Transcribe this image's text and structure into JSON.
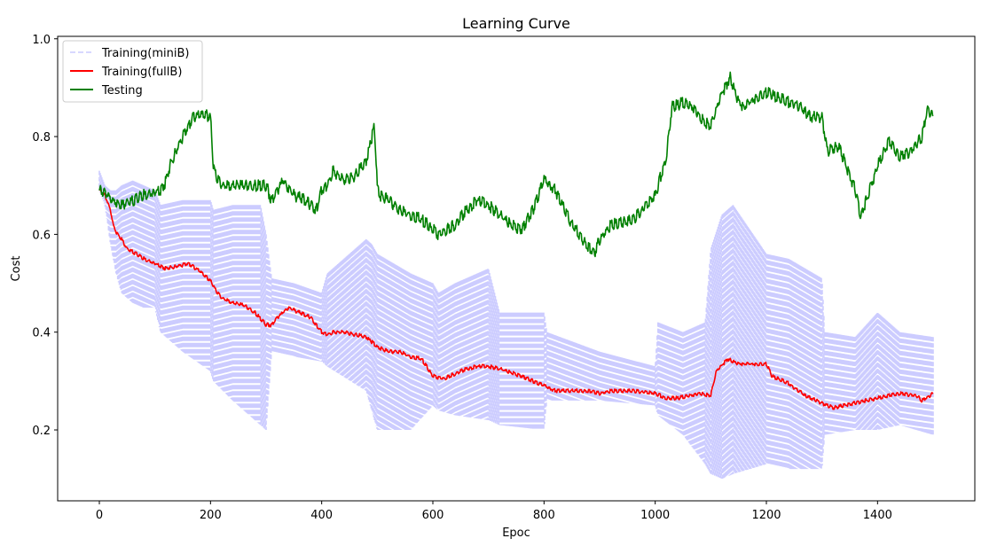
{
  "chart_data": {
    "type": "line",
    "title": "Learning Curve",
    "xlabel": "Epoc",
    "ylabel": "Cost",
    "xlim": [
      -75,
      1575
    ],
    "ylim": [
      0.055,
      1.005
    ],
    "xticks": [
      0,
      200,
      400,
      600,
      800,
      1000,
      1200,
      1400
    ],
    "yticks": [
      0.2,
      0.4,
      0.6,
      0.8,
      1.0
    ],
    "ytick_labels": [
      "0.2",
      "0.4",
      "0.6",
      "0.8",
      "1.0"
    ],
    "grid": false,
    "legend_position": "top-left",
    "series": [
      {
        "name": "Training(miniB)",
        "color": "#ccccff",
        "style": "dashed",
        "kind": "band",
        "x": [
          0,
          10,
          20,
          30,
          40,
          60,
          80,
          100,
          110,
          150,
          200,
          205,
          240,
          290,
          300,
          310,
          350,
          400,
          410,
          480,
          490,
          500,
          560,
          600,
          610,
          640,
          700,
          720,
          800,
          805,
          900,
          1000,
          1005,
          1050,
          1090,
          1100,
          1120,
          1140,
          1200,
          1240,
          1300,
          1305,
          1360,
          1400,
          1440,
          1500
        ],
        "upper": [
          0.73,
          0.7,
          0.69,
          0.69,
          0.7,
          0.71,
          0.7,
          0.69,
          0.66,
          0.67,
          0.67,
          0.65,
          0.66,
          0.66,
          0.6,
          0.51,
          0.5,
          0.48,
          0.52,
          0.59,
          0.58,
          0.56,
          0.52,
          0.5,
          0.48,
          0.5,
          0.53,
          0.44,
          0.44,
          0.4,
          0.36,
          0.33,
          0.42,
          0.4,
          0.42,
          0.57,
          0.64,
          0.66,
          0.56,
          0.55,
          0.51,
          0.4,
          0.39,
          0.44,
          0.4,
          0.39
        ],
        "lower": [
          0.69,
          0.66,
          0.58,
          0.52,
          0.48,
          0.46,
          0.45,
          0.45,
          0.4,
          0.36,
          0.32,
          0.3,
          0.26,
          0.21,
          0.2,
          0.36,
          0.35,
          0.34,
          0.33,
          0.28,
          0.24,
          0.2,
          0.2,
          0.25,
          0.24,
          0.23,
          0.22,
          0.21,
          0.2,
          0.26,
          0.26,
          0.25,
          0.23,
          0.19,
          0.13,
          0.11,
          0.1,
          0.11,
          0.13,
          0.12,
          0.12,
          0.19,
          0.2,
          0.2,
          0.21,
          0.19
        ]
      },
      {
        "name": "Training(fullB)",
        "color": "#ff0000",
        "style": "solid",
        "kind": "line",
        "x": [
          0,
          10,
          20,
          25,
          30,
          40,
          50,
          60,
          80,
          100,
          120,
          140,
          160,
          180,
          200,
          210,
          220,
          240,
          260,
          280,
          300,
          310,
          320,
          340,
          360,
          380,
          400,
          410,
          420,
          440,
          460,
          480,
          500,
          520,
          540,
          560,
          580,
          600,
          620,
          640,
          660,
          680,
          700,
          720,
          760,
          800,
          820,
          860,
          880,
          900,
          920,
          960,
          1000,
          1020,
          1040,
          1060,
          1080,
          1100,
          1110,
          1130,
          1150,
          1170,
          1190,
          1200,
          1210,
          1240,
          1270,
          1300,
          1320,
          1360,
          1400,
          1440,
          1470,
          1480,
          1500
        ],
        "values": [
          0.69,
          0.68,
          0.65,
          0.62,
          0.605,
          0.59,
          0.57,
          0.565,
          0.55,
          0.54,
          0.53,
          0.535,
          0.54,
          0.525,
          0.505,
          0.485,
          0.47,
          0.46,
          0.455,
          0.44,
          0.415,
          0.415,
          0.43,
          0.45,
          0.44,
          0.43,
          0.4,
          0.395,
          0.4,
          0.4,
          0.395,
          0.39,
          0.37,
          0.36,
          0.36,
          0.35,
          0.345,
          0.31,
          0.305,
          0.315,
          0.325,
          0.33,
          0.33,
          0.325,
          0.31,
          0.29,
          0.28,
          0.28,
          0.28,
          0.275,
          0.28,
          0.28,
          0.275,
          0.265,
          0.265,
          0.27,
          0.275,
          0.27,
          0.32,
          0.345,
          0.335,
          0.335,
          0.335,
          0.335,
          0.31,
          0.295,
          0.27,
          0.255,
          0.245,
          0.255,
          0.265,
          0.275,
          0.27,
          0.26,
          0.275
        ]
      },
      {
        "name": "Testing",
        "color": "#008000",
        "style": "solid",
        "kind": "line",
        "x": [
          0,
          10,
          20,
          30,
          40,
          60,
          80,
          100,
          110,
          120,
          130,
          150,
          170,
          190,
          200,
          205,
          210,
          220,
          240,
          260,
          280,
          300,
          310,
          330,
          350,
          370,
          390,
          400,
          410,
          420,
          440,
          460,
          480,
          495,
          500,
          505,
          520,
          540,
          560,
          580,
          600,
          610,
          640,
          660,
          680,
          700,
          720,
          740,
          760,
          780,
          800,
          820,
          850,
          880,
          890,
          900,
          920,
          960,
          1000,
          1020,
          1030,
          1050,
          1070,
          1080,
          1100,
          1120,
          1135,
          1150,
          1160,
          1180,
          1200,
          1220,
          1240,
          1250,
          1270,
          1280,
          1300,
          1310,
          1330,
          1360,
          1370,
          1400,
          1420,
          1440,
          1460,
          1480,
          1490,
          1500
        ],
        "values": [
          0.69,
          0.685,
          0.675,
          0.665,
          0.66,
          0.67,
          0.68,
          0.685,
          0.69,
          0.71,
          0.75,
          0.8,
          0.84,
          0.845,
          0.84,
          0.74,
          0.72,
          0.7,
          0.7,
          0.7,
          0.7,
          0.7,
          0.67,
          0.71,
          0.68,
          0.67,
          0.65,
          0.69,
          0.7,
          0.73,
          0.71,
          0.72,
          0.75,
          0.82,
          0.7,
          0.68,
          0.67,
          0.65,
          0.64,
          0.63,
          0.61,
          0.6,
          0.62,
          0.65,
          0.67,
          0.66,
          0.64,
          0.62,
          0.61,
          0.65,
          0.71,
          0.69,
          0.62,
          0.575,
          0.56,
          0.59,
          0.62,
          0.63,
          0.68,
          0.76,
          0.86,
          0.87,
          0.86,
          0.84,
          0.82,
          0.89,
          0.92,
          0.87,
          0.86,
          0.88,
          0.89,
          0.88,
          0.87,
          0.87,
          0.85,
          0.84,
          0.84,
          0.77,
          0.78,
          0.69,
          0.635,
          0.74,
          0.79,
          0.76,
          0.77,
          0.8,
          0.86,
          0.84
        ]
      }
    ]
  }
}
